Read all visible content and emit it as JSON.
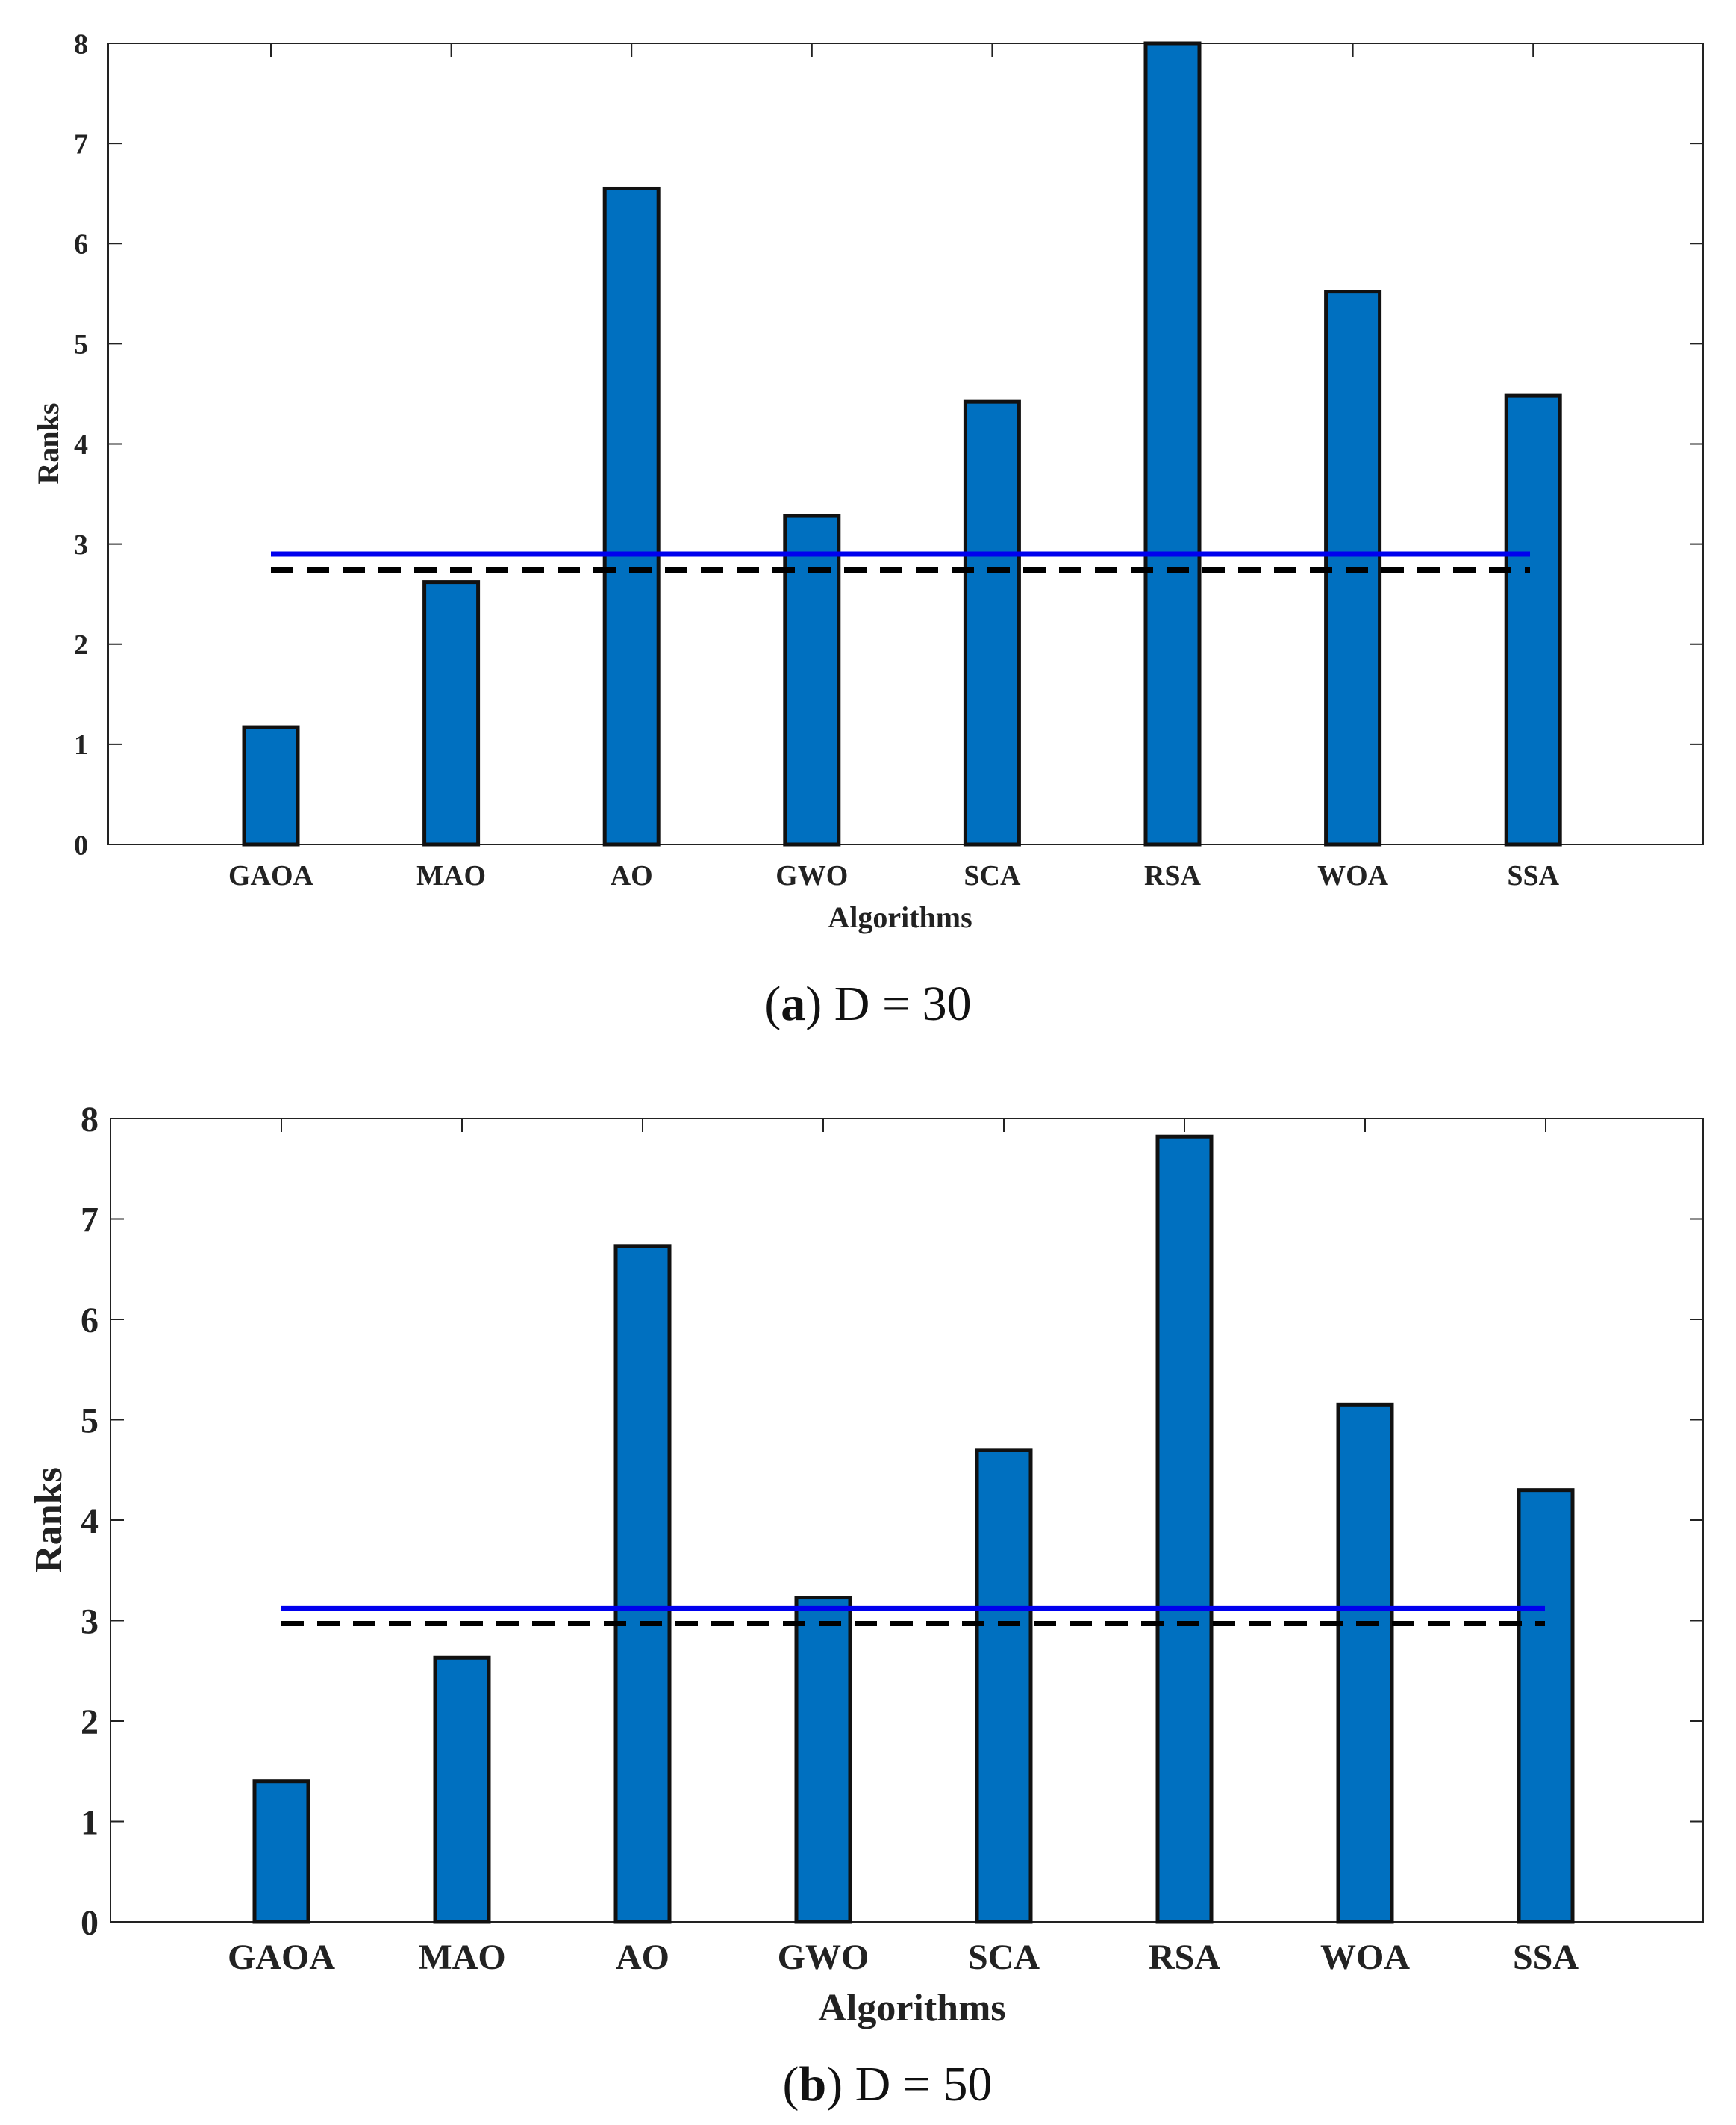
{
  "chart_data": [
    {
      "type": "bar",
      "caption_letter": "a",
      "caption_rest": ") D = 30",
      "caption_open": "(",
      "xlabel": "Algorithms",
      "ylabel": "Ranks",
      "categories": [
        "GAOA",
        "MAO",
        "AO",
        "GWO",
        "SCA",
        "RSA",
        "WOA",
        "SSA"
      ],
      "values": [
        1.17,
        2.62,
        6.55,
        3.28,
        4.42,
        8.0,
        5.52,
        4.48
      ],
      "ylim": [
        0,
        8
      ],
      "yticks": [
        0,
        1,
        2,
        3,
        4,
        5,
        6,
        7,
        8
      ],
      "reference_lines": [
        {
          "name": "threshold-solid",
          "value": 2.9,
          "color": "#0000ee",
          "style": "solid"
        },
        {
          "name": "threshold-dashed",
          "value": 2.74,
          "color": "#000000",
          "style": "dashed"
        }
      ],
      "bar_color": "#0070c0"
    },
    {
      "type": "bar",
      "caption_letter": "b",
      "caption_rest": ") D = 50",
      "caption_open": "(",
      "xlabel": "Algorithms",
      "ylabel": "Ranks",
      "categories": [
        "GAOA",
        "MAO",
        "AO",
        "GWO",
        "SCA",
        "RSA",
        "WOA",
        "SSA"
      ],
      "values": [
        1.4,
        2.63,
        6.73,
        3.23,
        4.7,
        7.82,
        5.15,
        4.3
      ],
      "ylim": [
        0,
        8
      ],
      "yticks": [
        0,
        1,
        2,
        3,
        4,
        5,
        6,
        7,
        8
      ],
      "reference_lines": [
        {
          "name": "threshold-solid",
          "value": 3.12,
          "color": "#0000ee",
          "style": "solid"
        },
        {
          "name": "threshold-dashed",
          "value": 2.97,
          "color": "#000000",
          "style": "dashed"
        }
      ],
      "bar_color": "#0070c0"
    }
  ]
}
